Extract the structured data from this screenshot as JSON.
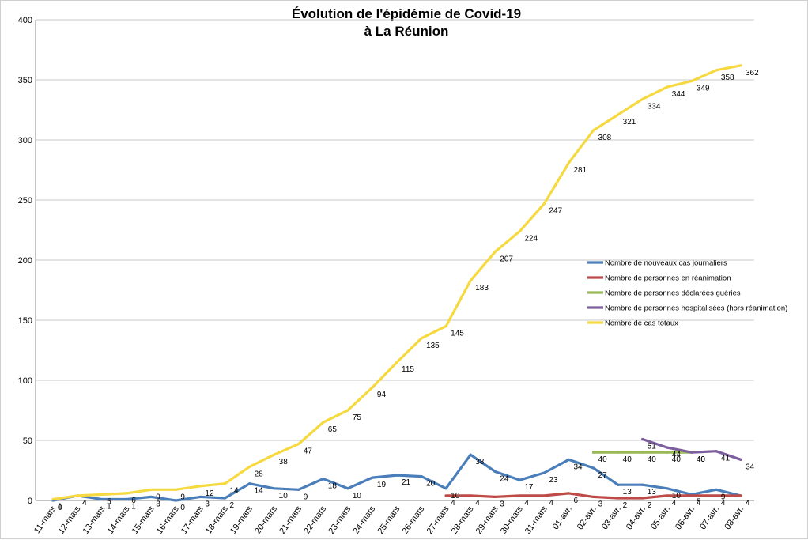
{
  "chart_data": {
    "type": "line",
    "title": "Évolution de l'épidémie de Covid-19",
    "subtitle": "à La Réunion",
    "xlabel": "",
    "ylabel": "",
    "ylim": [
      0,
      400
    ],
    "yticks": [
      "0",
      "50",
      "100",
      "150",
      "200",
      "250",
      "300",
      "350",
      "400"
    ],
    "grid": true,
    "legend_position": "right",
    "categories": [
      "11-mars",
      "12-mars",
      "13-mars",
      "14-mars",
      "15-mars",
      "16-mars",
      "17-mars",
      "18-mars",
      "19-mars",
      "20-mars",
      "21-mars",
      "22-mars",
      "23-mars",
      "24-mars",
      "25-mars",
      "26-mars",
      "27-mars",
      "28-mars",
      "29-mars",
      "30-mars",
      "31-mars",
      "01-avr.",
      "02-avr.",
      "03-avr.",
      "04-avr.",
      "05-avr.",
      "06-avr.",
      "07-avr.",
      "08-avr."
    ],
    "series": [
      {
        "name": "Nombre de nouveaux cas journaliers",
        "color": "#4a7ebb",
        "values": [
          0,
          4,
          1,
          1,
          3,
          0,
          3,
          2,
          14,
          10,
          9,
          18,
          10,
          19,
          21,
          20,
          10,
          38,
          24,
          17,
          23,
          34,
          27,
          13,
          13,
          10,
          5,
          9,
          4
        ]
      },
      {
        "name": "Nombre de personnes en réanimation",
        "color": "#be4b48",
        "values": [
          null,
          null,
          null,
          null,
          null,
          null,
          null,
          null,
          null,
          null,
          null,
          null,
          null,
          null,
          null,
          null,
          4,
          4,
          3,
          4,
          4,
          6,
          3,
          2,
          2,
          4,
          4,
          4,
          4
        ]
      },
      {
        "name": "Nombre de personnes déclarées guéries",
        "color": "#98b954",
        "values": [
          null,
          null,
          null,
          null,
          null,
          null,
          null,
          null,
          null,
          null,
          null,
          null,
          null,
          null,
          null,
          null,
          null,
          null,
          null,
          null,
          null,
          null,
          40,
          40,
          40,
          40,
          40,
          null,
          null
        ]
      },
      {
        "name": "Nombre de personnes hospitalisées (hors réanimation)",
        "color": "#7d5fa0",
        "values": [
          null,
          null,
          null,
          null,
          null,
          null,
          null,
          null,
          null,
          null,
          null,
          null,
          null,
          null,
          null,
          null,
          null,
          null,
          null,
          null,
          null,
          null,
          null,
          null,
          51,
          44,
          40,
          41,
          34
        ]
      },
      {
        "name": "Nombre de cas totaux",
        "color": "#f5d93f",
        "values": [
          1,
          4,
          5,
          6,
          9,
          9,
          12,
          14,
          28,
          38,
          47,
          65,
          75,
          94,
          115,
          135,
          145,
          183,
          207,
          224,
          247,
          281,
          308,
          321,
          334,
          344,
          349,
          358,
          362
        ]
      }
    ]
  }
}
